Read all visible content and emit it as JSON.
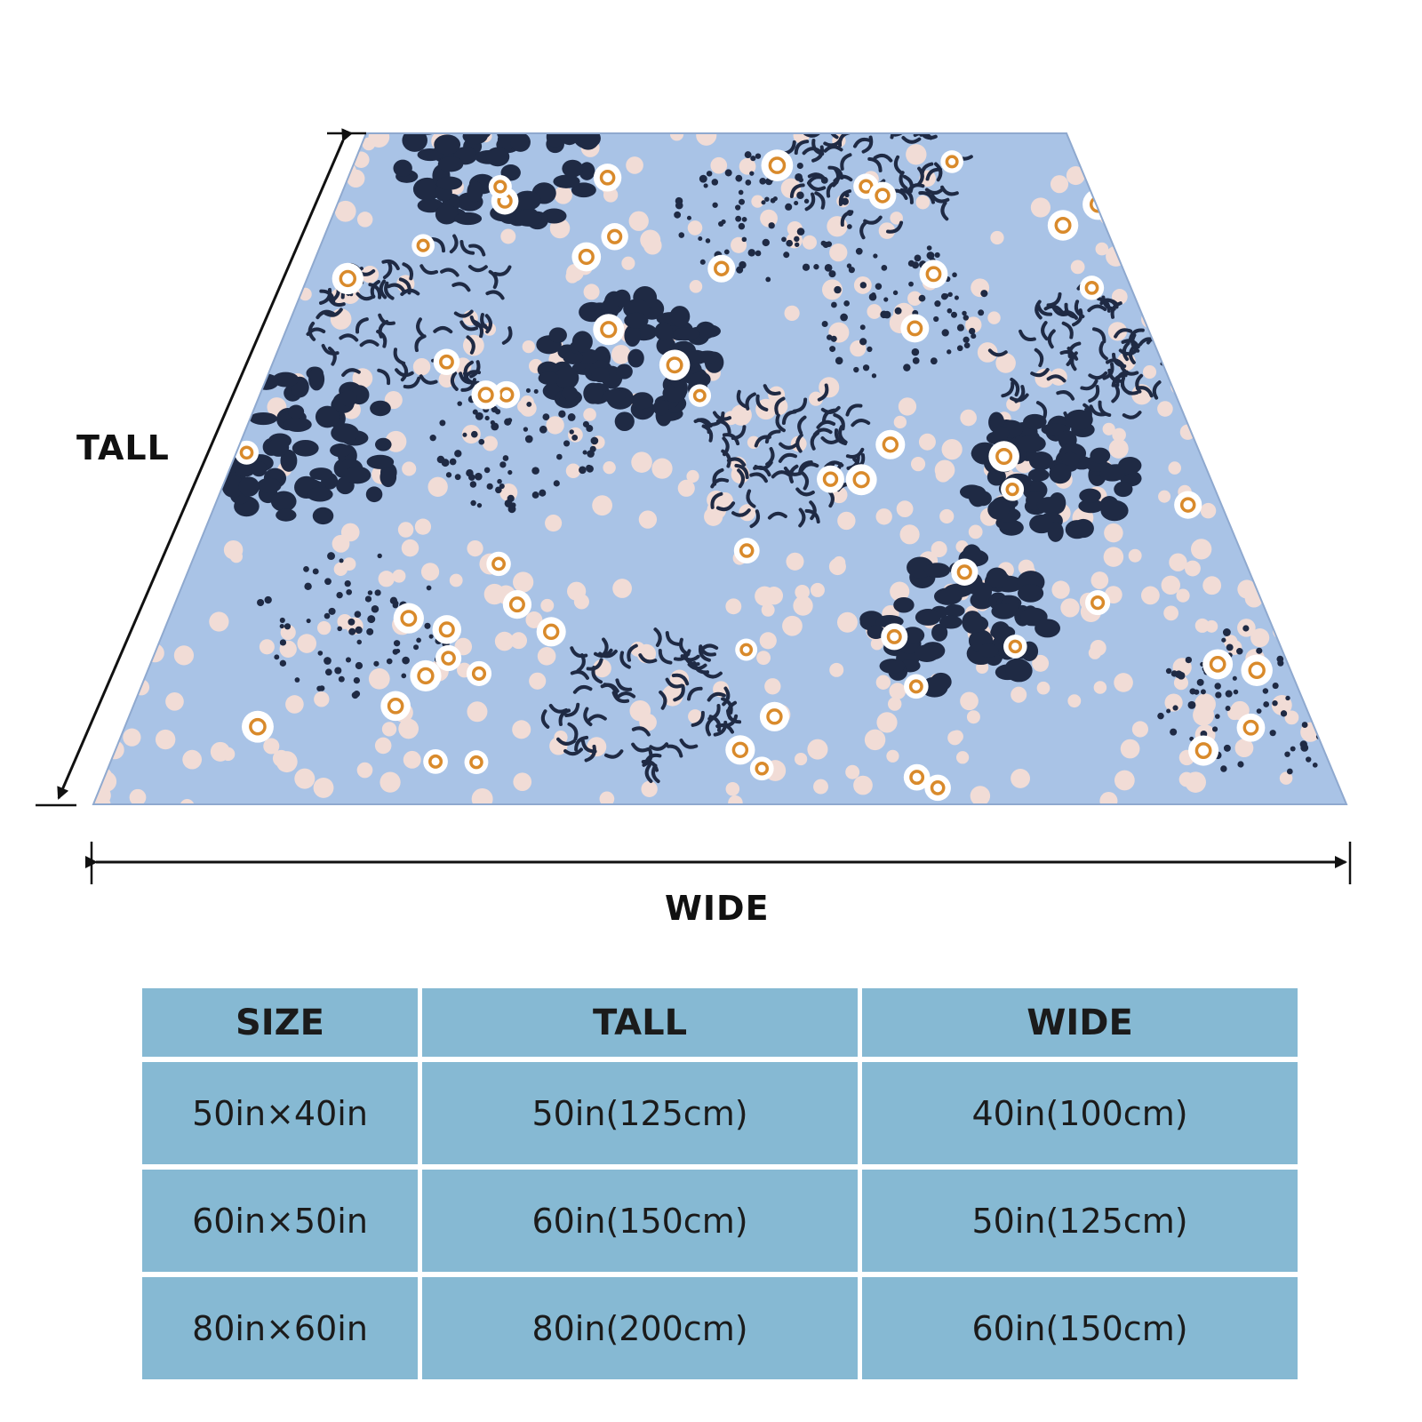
{
  "diagram": {
    "tall_label": "TALL",
    "wide_label": "WIDE"
  },
  "blanket": {
    "pattern": "abstract dotted circles and flowers",
    "colors": {
      "background": "#a9c3e6",
      "navy": "#1f2a44",
      "blush": "#f1dcd6",
      "white": "#ffffff",
      "orange": "#d98a2b"
    }
  },
  "size_table": {
    "headers": [
      "SIZE",
      "TALL",
      "WIDE"
    ],
    "rows": [
      [
        "50in×40in",
        "50in(125cm)",
        "40in(100cm)"
      ],
      [
        "60in×50in",
        "60in(150cm)",
        "50in(125cm)"
      ],
      [
        "80in×60in",
        "80in(200cm)",
        "60in(150cm)"
      ]
    ],
    "cell_color": "#86b9d3"
  }
}
